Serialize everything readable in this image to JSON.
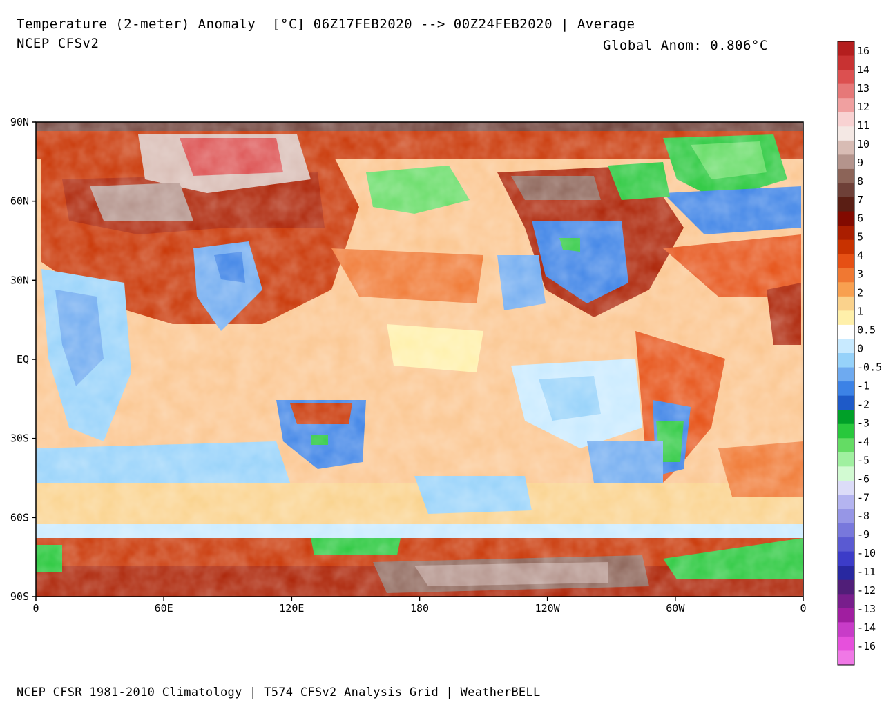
{
  "header": {
    "title": "Temperature (2-meter) Anomaly  [°C] 06Z17FEB2020 --> 00Z24FEB2020 | Average",
    "model": "NCEP CFSv2",
    "global_anom": "Global Anom: 0.806°C"
  },
  "footer": "NCEP CFSR 1981-2010 Climatology | T574 CFSv2 Analysis Grid | WeatherBELL",
  "axes": {
    "lat_labels": [
      "90N",
      "60N",
      "30N",
      "EQ",
      "30S",
      "60S",
      "90S"
    ],
    "lon_labels": [
      "0",
      "60E",
      "120E",
      "180",
      "120W",
      "60W",
      "0"
    ]
  },
  "colorbar": {
    "labels": [
      "16",
      "14",
      "13",
      "12",
      "11",
      "10",
      "9",
      "8",
      "7",
      "6",
      "5",
      "4",
      "3",
      "2",
      "1",
      "0.5",
      "0",
      "-0.5",
      "-1",
      "-2",
      "-3",
      "-4",
      "-5",
      "-6",
      "-7",
      "-8",
      "-9",
      "-10",
      "-11",
      "-12",
      "-13",
      "-14",
      "-16"
    ],
    "colors": [
      "#b41e1e",
      "#c83232",
      "#dc5050",
      "#e67878",
      "#f0a0a0",
      "#f8d2d2",
      "#f4e8e4",
      "#d8bcb4",
      "#b4948c",
      "#8c6458",
      "#6e4038",
      "#5a1e14",
      "#820a00",
      "#aa1e00",
      "#c83200",
      "#e65014",
      "#f07832",
      "#f8a050",
      "#fad28c",
      "#fff0aa",
      "#ffffff",
      "#c8eaff",
      "#96d2fa",
      "#6eaaf0",
      "#3c82e6",
      "#1e5ac8",
      "#00a028",
      "#28c83c",
      "#64dc64",
      "#a0f0a0",
      "#d2fad2",
      "#dcdcf8",
      "#b4b4f0",
      "#9696e6",
      "#7878dc",
      "#5a5ad2",
      "#3c3cc8",
      "#2828a0",
      "#501e78",
      "#781e8c",
      "#a01ea0",
      "#c83cc8",
      "#e650dc",
      "#f078e6"
    ]
  }
}
